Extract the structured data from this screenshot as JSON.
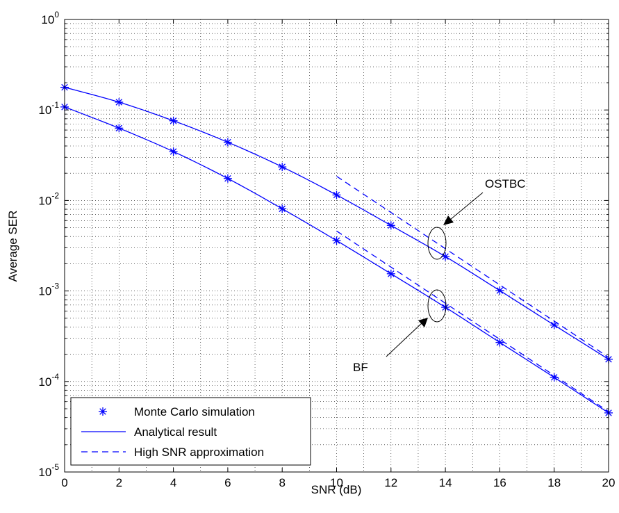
{
  "chart_data": {
    "type": "line",
    "title": "",
    "xlabel": "SNR (dB)",
    "ylabel": "Average SER",
    "xlim": [
      0,
      20
    ],
    "ylim": [
      1e-05,
      1
    ],
    "yscale": "log",
    "grid": true,
    "x_ticks": [
      "0",
      "2",
      "4",
      "6",
      "8",
      "10",
      "12",
      "14",
      "16",
      "18",
      "20"
    ],
    "y_ticks": [
      {
        "base": "10",
        "exp": "-5"
      },
      {
        "base": "10",
        "exp": "-4"
      },
      {
        "base": "10",
        "exp": "-3"
      },
      {
        "base": "10",
        "exp": "-2"
      },
      {
        "base": "10",
        "exp": "-1"
      },
      {
        "base": "10",
        "exp": "0"
      }
    ],
    "x": [
      0,
      2,
      4,
      6,
      8,
      10,
      12,
      14,
      16,
      18,
      20
    ],
    "series": [
      {
        "group": "OSTBC",
        "kind": "analytical_with_markers",
        "values": [
          0.178,
          0.122,
          0.076,
          0.044,
          0.0235,
          0.0115,
          0.0053,
          0.0024,
          0.00101,
          0.00042,
          0.000176
        ]
      },
      {
        "group": "BF",
        "kind": "analytical_with_markers",
        "values": [
          0.108,
          0.063,
          0.0347,
          0.0175,
          0.0081,
          0.0036,
          0.00155,
          0.00066,
          0.00027,
          0.000111,
          4.5e-05
        ]
      },
      {
        "group": "OSTBC",
        "kind": "high_snr_approximation",
        "x": [
          10,
          20
        ],
        "values": [
          0.0185,
          0.000185
        ]
      },
      {
        "group": "BF",
        "kind": "high_snr_approximation",
        "x": [
          10,
          20
        ],
        "values": [
          0.0046,
          4.65e-05
        ]
      }
    ],
    "annotations": [
      {
        "text": "OSTBC",
        "ellipse_at": {
          "x": 13.7,
          "y": 0.0033
        }
      },
      {
        "text": "BF",
        "ellipse_at": {
          "x": 13.7,
          "y": 0.00066
        }
      }
    ],
    "legend": {
      "position": "bottom-left",
      "entries": [
        {
          "label": "Monte Carlo simulation",
          "style": "marker-star"
        },
        {
          "label": "Analytical result",
          "style": "solid"
        },
        {
          "label": "High SNR approximation",
          "style": "dashed"
        }
      ]
    },
    "colors": {
      "series": "#0000ff",
      "grid": "#000000",
      "axes": "#000000"
    }
  }
}
